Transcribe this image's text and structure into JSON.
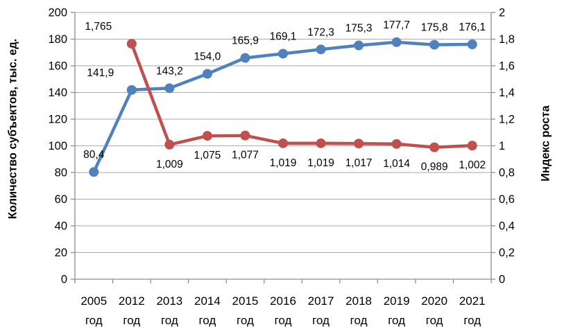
{
  "chart_data": {
    "type": "line",
    "title": "",
    "legend": "none",
    "grid": true,
    "categories": [
      "2005",
      "2012",
      "2013",
      "2014",
      "2015",
      "2016",
      "2017",
      "2018",
      "2019",
      "2020",
      "2021"
    ],
    "category_suffix": "год",
    "left_axis": {
      "title": "Количество субъектов, тыс. ед.",
      "min": 0,
      "max": 200,
      "step": 20,
      "tick_labels": [
        "0",
        "20",
        "40",
        "60",
        "80",
        "100",
        "120",
        "140",
        "160",
        "180",
        "200"
      ]
    },
    "right_axis": {
      "title": "Индекс роста",
      "min": 0,
      "max": 2,
      "step": 0.2,
      "tick_labels": [
        "0",
        "0,2",
        "0,4",
        "0,6",
        "0,8",
        "1",
        "1,2",
        "1,4",
        "1,6",
        "1,8",
        "2"
      ]
    },
    "series": [
      {
        "name": "Количество субъектов, тыс. ед.",
        "axis": "left",
        "color": "#4F81BD",
        "values": [
          80.4,
          141.9,
          143.2,
          154.0,
          165.9,
          169.1,
          172.3,
          175.3,
          177.7,
          175.8,
          176.1
        ],
        "data_labels": [
          "80,4",
          "141,9",
          "143,2",
          "154,0",
          "165,9",
          "169,1",
          "172,3",
          "175,3",
          "177,7",
          "175,8",
          "176,1"
        ],
        "label_position": "above"
      },
      {
        "name": "Индекс роста",
        "axis": "right",
        "color": "#C0504D",
        "values": [
          null,
          1.765,
          1.009,
          1.075,
          1.077,
          1.019,
          1.019,
          1.017,
          1.014,
          0.989,
          1.002
        ],
        "data_labels": [
          null,
          "1,765",
          "1,009",
          "1,075",
          "1,077",
          "1,019",
          "1,019",
          "1,017",
          "1,014",
          "0,989",
          "1,002"
        ],
        "label_position": "below",
        "first_label_position": "above"
      }
    ],
    "colors": {
      "gridline": "#ABABAB",
      "axis": "#8C8C8C",
      "text": "#000000",
      "background": "#FFFFFF"
    }
  }
}
